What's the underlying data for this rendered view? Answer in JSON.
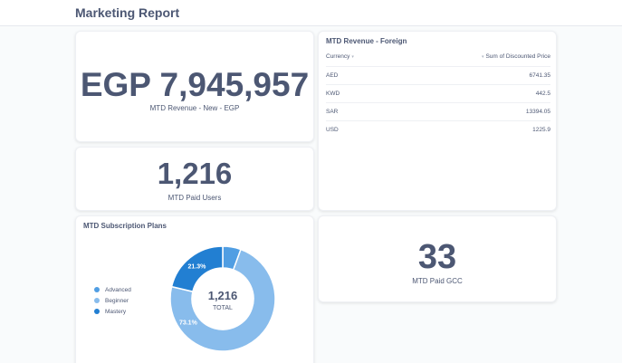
{
  "page": {
    "title": "Marketing Report"
  },
  "revenue_egp": {
    "value": "EGP 7,945,957",
    "label": "MTD Revenue - New - EGP"
  },
  "paid_users": {
    "value": "1,216",
    "label": "MTD Paid Users"
  },
  "paid_gcc": {
    "value": "33",
    "label": "MTD Paid GCC"
  },
  "foreign": {
    "title": "MTD Revenue - Foreign",
    "columns": [
      "Currency",
      "Sum of Discounted Price"
    ],
    "rows": [
      {
        "currency": "AED",
        "amount": "6741.35"
      },
      {
        "currency": "KWD",
        "amount": "442.5"
      },
      {
        "currency": "SAR",
        "amount": "13394.05"
      },
      {
        "currency": "USD",
        "amount": "1225.9"
      }
    ]
  },
  "plans": {
    "title": "MTD Subscription Plans",
    "center_value": "1,216",
    "center_label": "TOTAL",
    "legend": [
      {
        "name": "Advanced",
        "color": "#509ee3"
      },
      {
        "name": "Beginner",
        "color": "#88bcec"
      },
      {
        "name": "Mastery",
        "color": "#227fd2"
      }
    ]
  },
  "chart_data": {
    "type": "pie",
    "title": "MTD Subscription Plans",
    "center_total": 1216,
    "slices": [
      {
        "name": "Advanced",
        "percent": 5.6,
        "color": "#509ee3",
        "label": ""
      },
      {
        "name": "Beginner",
        "percent": 73.1,
        "color": "#88bcec",
        "label": "73.1%"
      },
      {
        "name": "Mastery",
        "percent": 21.3,
        "color": "#227fd2",
        "label": "21.3%"
      }
    ],
    "legend_position": "left"
  }
}
